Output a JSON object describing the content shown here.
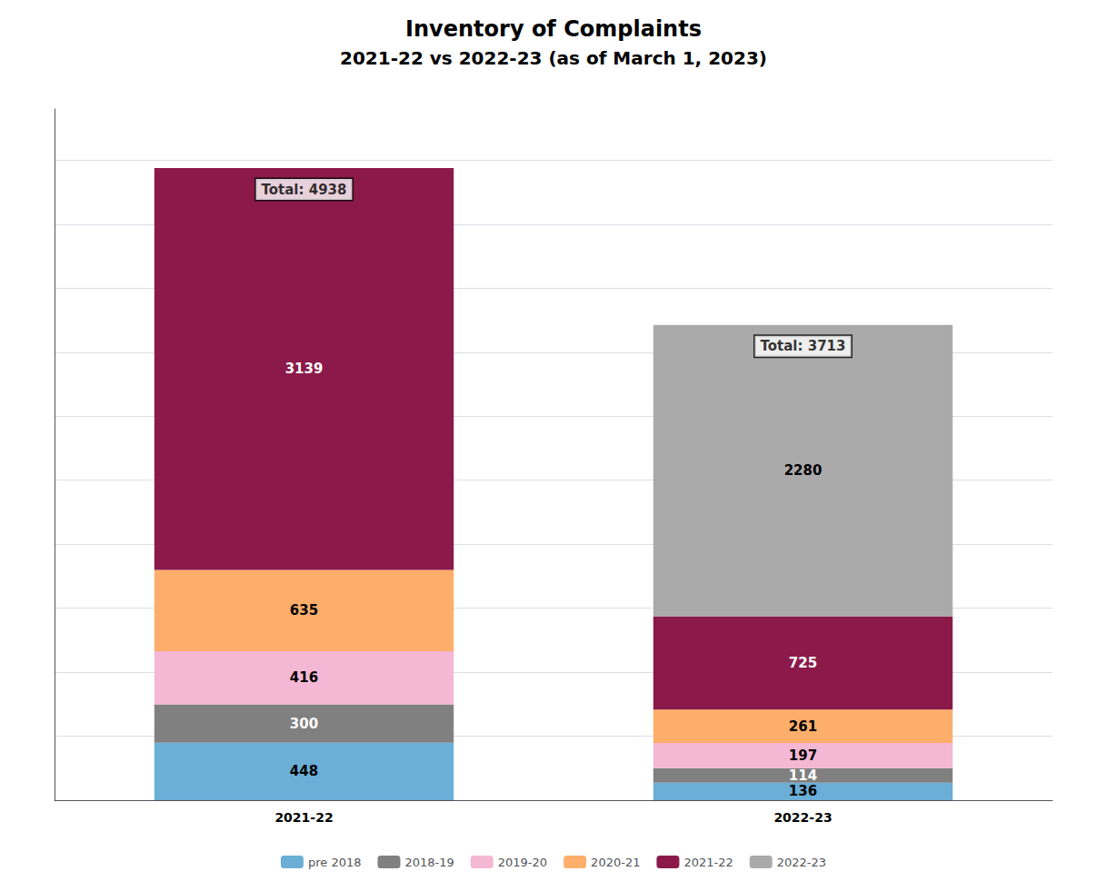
{
  "chart_data": {
    "type": "bar",
    "title": "Inventory of Complaints",
    "subtitle": "2021-22 vs 2022-23 (as of March 1, 2023)",
    "categories": [
      "2021-22",
      "2022-23"
    ],
    "series": [
      {
        "name": "pre 2018",
        "color": "#6baed6",
        "values": [
          448,
          136
        ]
      },
      {
        "name": "2018-19",
        "color": "#808080",
        "values": [
          300,
          114
        ]
      },
      {
        "name": "2019-20",
        "color": "#f4b8d4",
        "values": [
          416,
          197
        ]
      },
      {
        "name": "2020-21",
        "color": "#fdae6b",
        "values": [
          635,
          261
        ]
      },
      {
        "name": "2021-22",
        "color": "#8b1a4a",
        "values": [
          3139,
          725
        ]
      },
      {
        "name": "2022-23",
        "color": "#aaaaaa",
        "values": [
          0,
          2280
        ]
      }
    ],
    "totals": [
      4938,
      3713
    ],
    "total_labels": [
      "Total: 4938",
      "Total: 3713"
    ],
    "stacked": true,
    "data_labels": true,
    "ylim": [
      0,
      5400
    ],
    "yticks": [
      0,
      500,
      1000,
      1500,
      2000,
      2500,
      3000,
      3500,
      4000,
      4500,
      5000
    ],
    "tick_labels": "x",
    "grid": true,
    "legend": "bottom"
  }
}
